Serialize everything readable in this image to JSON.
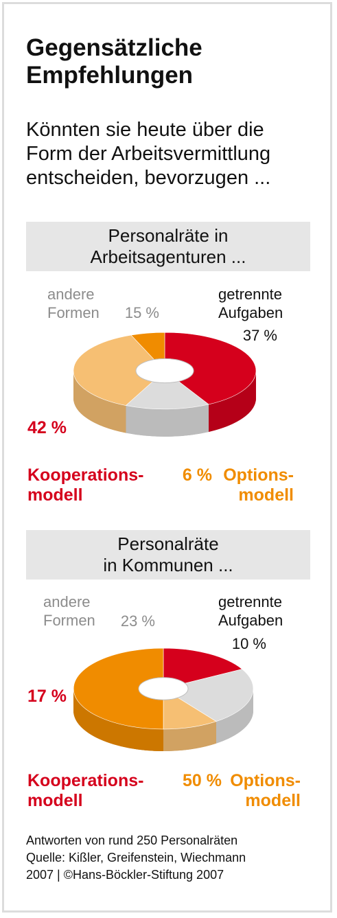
{
  "title_lines": [
    "Gegensätzliche",
    "Empfehlungen"
  ],
  "subtitle_lines": [
    "Könnten sie heute über die",
    "Form der Arbeitsvermittlung",
    "entscheiden, bevorzugen ..."
  ],
  "colors": {
    "red": "#d5001c",
    "orange": "#f08c00",
    "light_orange": "#f6bf73",
    "gray": "#dcdcdc",
    "band": "#e6e6e6"
  },
  "chart_data": [
    {
      "type": "pie",
      "style": "3d-donut",
      "title_lines": [
        "Personalräte in",
        "Arbeitsagenturen ..."
      ],
      "slices": [
        {
          "pct_label": "42 %",
          "name_lines": [
            "Kooperations-",
            "modell"
          ],
          "value": 42,
          "color": "#d5001c"
        },
        {
          "pct_label": "15 %",
          "name_lines": [
            "andere",
            "Formen"
          ],
          "value": 15,
          "color": "#dcdcdc"
        },
        {
          "pct_label": "37 %",
          "name_lines": [
            "getrennte",
            "Aufgaben"
          ],
          "value": 37,
          "color": "#f6bf73"
        },
        {
          "pct_label": "6 %",
          "name_lines": [
            "Options-",
            "modell"
          ],
          "value": 6,
          "color": "#f08c00"
        }
      ]
    },
    {
      "type": "pie",
      "style": "3d-donut",
      "title_lines": [
        "Personalräte",
        "in Kommunen ..."
      ],
      "slices": [
        {
          "pct_label": "17 %",
          "name_lines": [
            "Kooperations-",
            "modell"
          ],
          "value": 17,
          "color": "#d5001c"
        },
        {
          "pct_label": "23 %",
          "name_lines": [
            "andere",
            "Formen"
          ],
          "value": 23,
          "color": "#dcdcdc"
        },
        {
          "pct_label": "10 %",
          "name_lines": [
            "getrennte",
            "Aufgaben"
          ],
          "value": 10,
          "color": "#f6bf73"
        },
        {
          "pct_label": "50 %",
          "name_lines": [
            "Options-",
            "modell"
          ],
          "value": 50,
          "color": "#f08c00"
        }
      ]
    }
  ],
  "notes": [
    "Antworten von rund 250 Personalräten",
    "Quelle: Kißler, Greifenstein, Wiechmann",
    "2007 | ©Hans-Böckler-Stiftung 2007"
  ]
}
